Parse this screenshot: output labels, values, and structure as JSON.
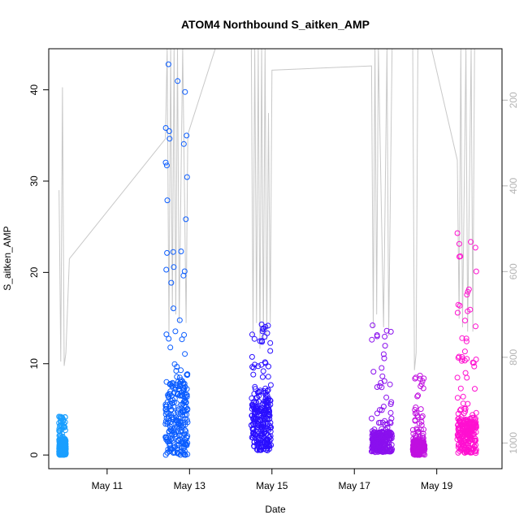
{
  "chart_data": {
    "type": "scatter",
    "title": "ATOM4 Northbound S_aitken_AMP",
    "xlabel": "Date",
    "ylabel": "S_aitken_AMP",
    "xlim": [
      "2016-05-09 14:00",
      "2016-05-20 14:00"
    ],
    "ylim": [
      -1.5,
      44.5
    ],
    "x_ticks": [
      "May 11",
      "May 13",
      "May 15",
      "May 17",
      "May 19"
    ],
    "x_tick_values": [
      "2016-05-11",
      "2016-05-13",
      "2016-05-15",
      "2016-05-17",
      "2016-05-19"
    ],
    "y_ticks": [
      0,
      10,
      20,
      30,
      40
    ],
    "secondary_y_ticks": [
      200,
      400,
      600,
      800,
      1000
    ],
    "secondary_y_reversed": true,
    "secondary_ylim": [
      80,
      1060
    ],
    "grid": false,
    "legend": "none",
    "clusters": [
      {
        "start": "2016-05-09 20:00",
        "end": "2016-05-10 00:00",
        "typical_min": 0,
        "typical_max": 1.6,
        "peak": 4.2,
        "color": "#1a9fff"
      },
      {
        "start": "2016-05-12 10:00",
        "end": "2016-05-12 23:00",
        "typical_min": 0,
        "typical_max": 8,
        "peak": 42.8,
        "color": "#0a5cff"
      },
      {
        "start": "2016-05-14 12:00",
        "end": "2016-05-14 23:30",
        "typical_min": 0.5,
        "typical_max": 6,
        "peak": 14.3,
        "color": "#2a0fff"
      },
      {
        "start": "2016-05-17 10:00",
        "end": "2016-05-17 22:00",
        "typical_min": 0.3,
        "typical_max": 2.5,
        "peak": 14.2,
        "color": "#8a10ee"
      },
      {
        "start": "2016-05-18 10:00",
        "end": "2016-05-18 17:00",
        "typical_min": 0,
        "typical_max": 1.5,
        "peak": 8.7,
        "color": "#c010e0"
      },
      {
        "start": "2016-05-19 12:00",
        "end": "2016-05-19 23:00",
        "typical_min": 0.2,
        "typical_max": 4,
        "peak": 24.3,
        "color": "#ff10d0"
      }
    ],
    "secondary_line": {
      "color": "#c8c8c8",
      "points": [
        [
          "2016-05-09 20:00",
          410
        ],
        [
          "2016-05-09 21:00",
          810
        ],
        [
          "2016-05-09 22:00",
          170
        ],
        [
          "2016-05-09 23:00",
          820
        ],
        [
          "2016-05-10 00:00",
          790
        ],
        [
          "2016-05-10 02:00",
          570
        ],
        [
          "2016-05-12 10:00",
          290
        ],
        [
          "2016-05-12 11:00",
          60
        ],
        [
          "2016-05-12 12:00",
          750
        ],
        [
          "2016-05-12 13:00",
          60
        ],
        [
          "2016-05-12 14:00",
          690
        ],
        [
          "2016-05-12 15:00",
          60
        ],
        [
          "2016-05-12 16:00",
          700
        ],
        [
          "2016-05-12 17:00",
          60
        ],
        [
          "2016-05-12 18:00",
          720
        ],
        [
          "2016-05-12 20:00",
          60
        ],
        [
          "2016-05-12 22:00",
          720
        ],
        [
          "2016-05-12 23:00",
          280
        ],
        [
          "2016-05-13 15:00",
          20
        ],
        [
          "2016-05-14 12:00",
          60
        ],
        [
          "2016-05-14 13:00",
          750
        ],
        [
          "2016-05-14 14:00",
          60
        ],
        [
          "2016-05-14 15:00",
          720
        ],
        [
          "2016-05-14 16:00",
          60
        ],
        [
          "2016-05-14 17:00",
          780
        ],
        [
          "2016-05-14 18:00",
          60
        ],
        [
          "2016-05-14 19:00",
          760
        ],
        [
          "2016-05-14 20:00",
          60
        ],
        [
          "2016-05-14 21:00",
          760
        ],
        [
          "2016-05-14 22:00",
          230
        ],
        [
          "2016-05-14 23:00",
          720
        ],
        [
          "2016-05-15 00:00",
          130
        ],
        [
          "2016-05-17 10:00",
          120
        ],
        [
          "2016-05-17 11:00",
          730
        ],
        [
          "2016-05-17 12:00",
          60
        ],
        [
          "2016-05-17 13:00",
          700
        ],
        [
          "2016-05-17 14:00",
          60
        ],
        [
          "2016-05-17 17:00",
          730
        ],
        [
          "2016-05-17 19:00",
          60
        ],
        [
          "2016-05-17 20:00",
          750
        ],
        [
          "2016-05-17 22:00",
          60
        ],
        [
          "2016-05-18 10:00",
          60
        ],
        [
          "2016-05-18 11:00",
          830
        ],
        [
          "2016-05-18 12:00",
          790
        ],
        [
          "2016-05-18 13:00",
          60
        ],
        [
          "2016-05-18 21:00",
          60
        ],
        [
          "2016-05-19 12:00",
          340
        ],
        [
          "2016-05-19 13:00",
          710
        ],
        [
          "2016-05-19 14:00",
          60
        ],
        [
          "2016-05-19 15:00",
          730
        ],
        [
          "2016-05-19 17:00",
          60
        ],
        [
          "2016-05-19 18:00",
          740
        ],
        [
          "2016-05-19 20:00",
          60
        ],
        [
          "2016-05-19 21:00",
          740
        ],
        [
          "2016-05-19 22:00",
          60
        ]
      ]
    }
  }
}
